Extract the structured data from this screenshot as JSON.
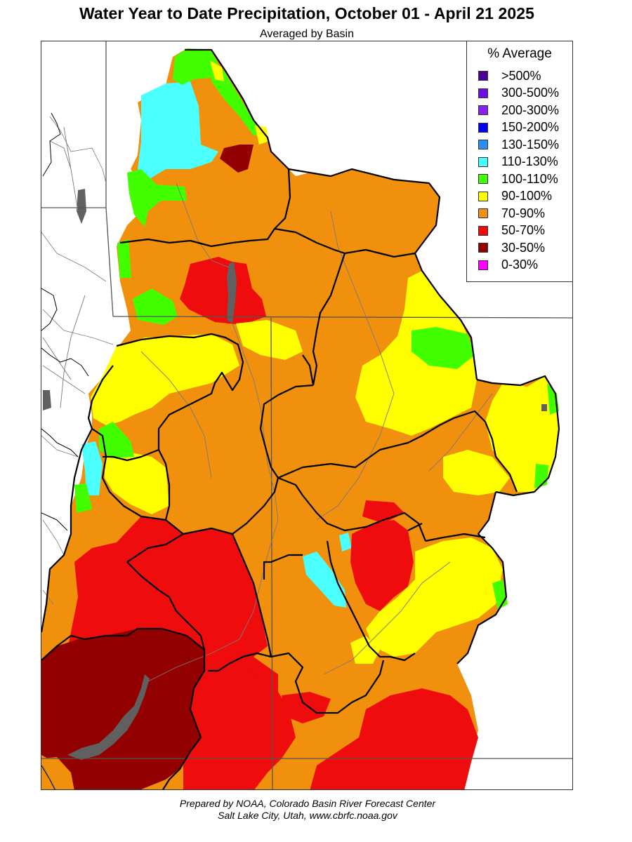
{
  "title": "Water Year to Date Precipitation, October 01  - April 21 2025",
  "subtitle": "Averaged by Basin",
  "legend": {
    "title": "% Average",
    "items": [
      {
        "label": ">500%",
        "color": "#4b0096"
      },
      {
        "label": "300-500%",
        "color": "#6a0fe0"
      },
      {
        "label": "200-300%",
        "color": "#8b1df5"
      },
      {
        "label": "150-200%",
        "color": "#0000f2"
      },
      {
        "label": "130-150%",
        "color": "#2e8cf5"
      },
      {
        "label": "110-130%",
        "color": "#4cffff"
      },
      {
        "label": "100-110%",
        "color": "#42ff00"
      },
      {
        "label": "90-100%",
        "color": "#ffff00"
      },
      {
        "label": "70-90%",
        "color": "#f0900c"
      },
      {
        "label": "50-70%",
        "color": "#ee0c0c"
      },
      {
        "label": "30-50%",
        "color": "#930000"
      },
      {
        "label": "0-30%",
        "color": "#ff00ff"
      }
    ]
  },
  "colors": {
    "c110_130": "#4cffff",
    "c100_110": "#42ff00",
    "c90_100": "#ffff00",
    "c70_90": "#f0900c",
    "c50_70": "#ee0c0c",
    "c30_50": "#930000",
    "lake": "#606060",
    "basin_border": "#000000",
    "state_line": "#555555",
    "river": "#7a7a7a"
  },
  "footer": {
    "line1": "Prepared by NOAA, Colorado Basin River Forecast Center",
    "line2": "Salt Lake City, Utah, www.cbrfc.noaa.gov"
  }
}
